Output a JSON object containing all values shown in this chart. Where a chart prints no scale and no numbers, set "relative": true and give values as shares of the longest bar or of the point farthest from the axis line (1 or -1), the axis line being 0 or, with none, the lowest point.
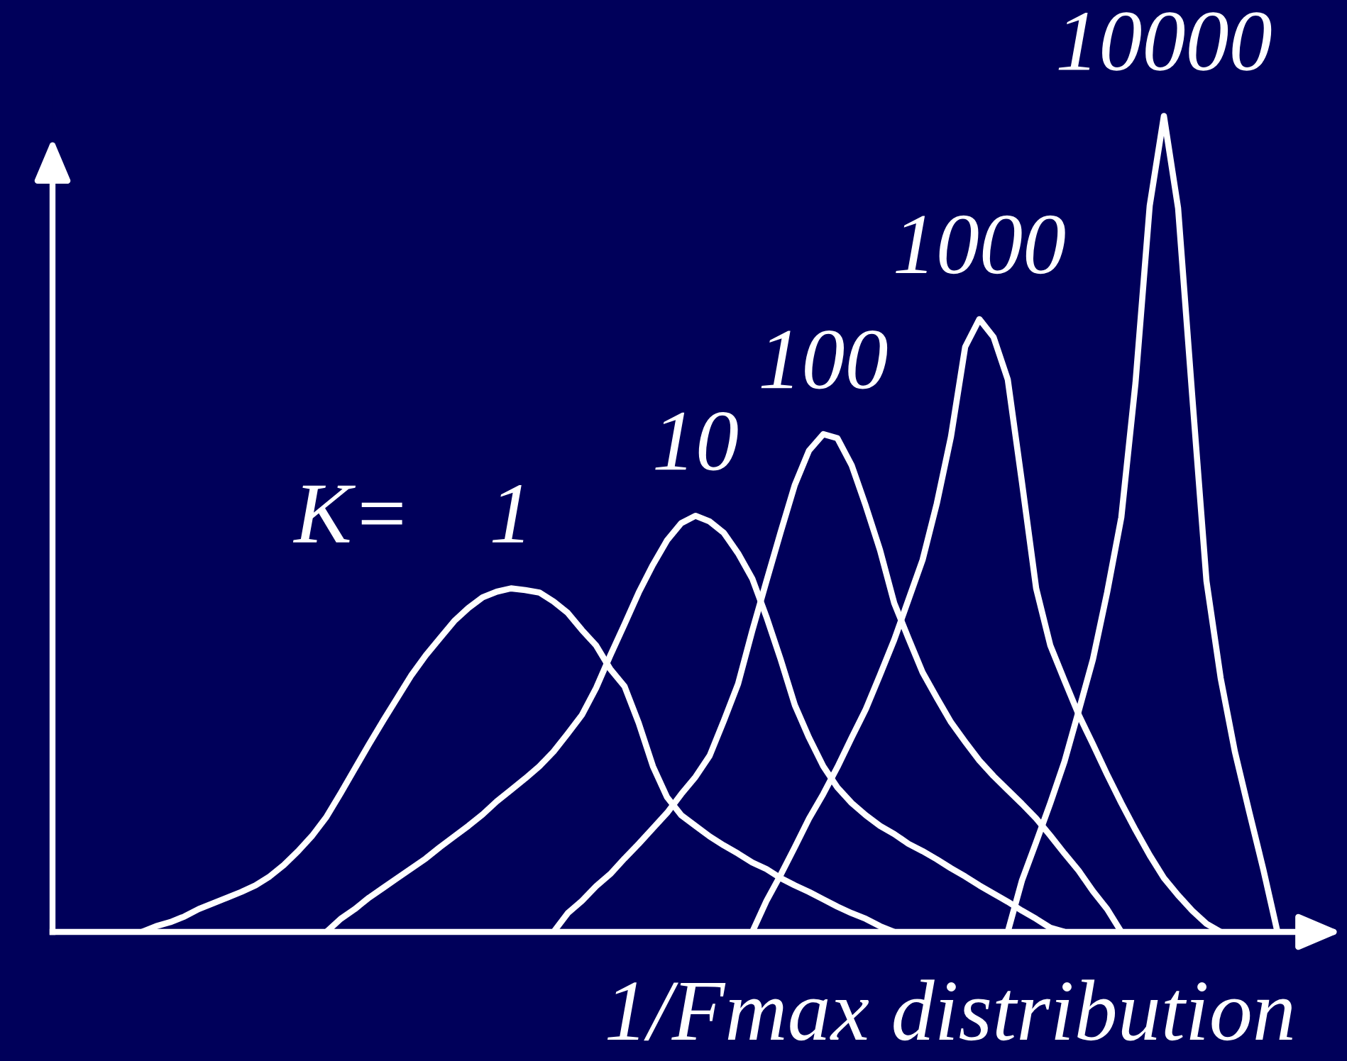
{
  "chart_data": {
    "type": "line",
    "relative": true,
    "xlabel": "1/Fmax distribution",
    "annotations": [
      "K="
    ],
    "categories": [
      null,
      null,
      null,
      null,
      null,
      null,
      null,
      null,
      null,
      null,
      null,
      null,
      null,
      null,
      null,
      null,
      null,
      null,
      null,
      null,
      null,
      null,
      null,
      null,
      null,
      null,
      null,
      null,
      null,
      null,
      null,
      null,
      null,
      null,
      null,
      null,
      null,
      null,
      null,
      null,
      null,
      null,
      null,
      null,
      null,
      null,
      null,
      null,
      null,
      null,
      null,
      null,
      null,
      null,
      null,
      null,
      null,
      null,
      null,
      null,
      null,
      null,
      null,
      null,
      null,
      null,
      null,
      null,
      null,
      null,
      null,
      null,
      null,
      null,
      null,
      null,
      null,
      null,
      null,
      null,
      null,
      null,
      null,
      null,
      null,
      null,
      null,
      null,
      null,
      null,
      null
    ],
    "series": [
      {
        "name": "1",
        "color": "#ffffff",
        "values": [
          null,
          null,
          null,
          null,
          null,
          null,
          0,
          0.007,
          0.012,
          0.019,
          0.028,
          0.035,
          0.042,
          0.049,
          0.057,
          0.068,
          0.082,
          0.099,
          0.118,
          0.141,
          0.17,
          0.2,
          0.23,
          0.259,
          0.287,
          0.315,
          0.339,
          0.36,
          0.381,
          0.397,
          0.41,
          0.417,
          0.421,
          0.419,
          0.416,
          0.405,
          0.391,
          0.37,
          0.351,
          0.322,
          0.301,
          0.256,
          0.203,
          0.165,
          0.143,
          0.13,
          0.117,
          0.106,
          0.096,
          0.085,
          0.077,
          0.066,
          0.057,
          0.049,
          0.04,
          0.031,
          0.023,
          0.016,
          0.007,
          0,
          null,
          null,
          null,
          null,
          null,
          null,
          null,
          null,
          null,
          null,
          null,
          null,
          null,
          null,
          null,
          null,
          null,
          null,
          null,
          null,
          null,
          null,
          null,
          null,
          null,
          null,
          null,
          null,
          null,
          null,
          null
        ]
      },
      {
        "name": "10",
        "color": "#ffffff",
        "values": [
          null,
          null,
          null,
          null,
          null,
          null,
          null,
          null,
          null,
          null,
          null,
          null,
          null,
          null,
          null,
          null,
          null,
          null,
          null,
          0,
          0.016,
          0.028,
          0.042,
          0.054,
          0.066,
          0.078,
          0.09,
          0.104,
          0.117,
          0.13,
          0.144,
          0.16,
          0.174,
          0.188,
          0.203,
          0.221,
          0.243,
          0.266,
          0.299,
          0.339,
          0.377,
          0.416,
          0.45,
          0.48,
          0.501,
          0.51,
          0.503,
          0.489,
          0.464,
          0.433,
          0.386,
          0.334,
          0.278,
          0.238,
          0.203,
          0.177,
          0.158,
          0.143,
          0.13,
          0.12,
          0.108,
          0.099,
          0.089,
          0.078,
          0.068,
          0.057,
          0.047,
          0.037,
          0.026,
          0.016,
          0.005,
          0,
          null,
          null,
          null,
          null,
          null,
          null,
          null,
          null,
          null,
          null,
          null,
          null,
          null,
          null,
          null,
          null,
          null,
          null,
          null
        ]
      },
      {
        "name": "100",
        "color": "#ffffff",
        "values": [
          null,
          null,
          null,
          null,
          null,
          null,
          null,
          null,
          null,
          null,
          null,
          null,
          null,
          null,
          null,
          null,
          null,
          null,
          null,
          null,
          null,
          null,
          null,
          null,
          null,
          null,
          null,
          null,
          null,
          null,
          null,
          null,
          null,
          null,
          null,
          0,
          0.023,
          0.038,
          0.056,
          0.071,
          0.09,
          0.108,
          0.127,
          0.146,
          0.169,
          0.19,
          0.216,
          0.259,
          0.304,
          0.369,
          0.43,
          0.49,
          0.548,
          0.59,
          0.61,
          0.605,
          0.572,
          0.522,
          0.468,
          0.403,
          0.36,
          0.318,
          0.287,
          0.257,
          0.233,
          0.21,
          0.191,
          0.174,
          0.157,
          0.139,
          0.118,
          0.096,
          0.075,
          0.05,
          0.028,
          0,
          null,
          null,
          null,
          null,
          null,
          null,
          null,
          null,
          null,
          null,
          null,
          null,
          null,
          null,
          null
        ]
      },
      {
        "name": "1000",
        "color": "#ffffff",
        "values": [
          null,
          null,
          null,
          null,
          null,
          null,
          null,
          null,
          null,
          null,
          null,
          null,
          null,
          null,
          null,
          null,
          null,
          null,
          null,
          null,
          null,
          null,
          null,
          null,
          null,
          null,
          null,
          null,
          null,
          null,
          null,
          null,
          null,
          null,
          null,
          null,
          null,
          null,
          null,
          null,
          null,
          null,
          null,
          null,
          null,
          null,
          null,
          null,
          null,
          0,
          0.038,
          0.07,
          0.104,
          0.139,
          0.169,
          0.202,
          0.238,
          0.273,
          0.315,
          0.358,
          0.407,
          0.456,
          0.525,
          0.607,
          0.717,
          0.751,
          0.729,
          0.677,
          0.551,
          0.421,
          0.351,
          0.308,
          0.266,
          0.23,
          0.193,
          0.158,
          0.125,
          0.094,
          0.066,
          0.045,
          0.026,
          0.01,
          0,
          null,
          null,
          null,
          null,
          null,
          null,
          null,
          null
        ]
      },
      {
        "name": "10000",
        "color": "#ffffff",
        "values": [
          null,
          null,
          null,
          null,
          null,
          null,
          null,
          null,
          null,
          null,
          null,
          null,
          null,
          null,
          null,
          null,
          null,
          null,
          null,
          null,
          null,
          null,
          null,
          null,
          null,
          null,
          null,
          null,
          null,
          null,
          null,
          null,
          null,
          null,
          null,
          null,
          null,
          null,
          null,
          null,
          null,
          null,
          null,
          null,
          null,
          null,
          null,
          null,
          null,
          null,
          null,
          null,
          null,
          null,
          null,
          null,
          null,
          null,
          null,
          null,
          null,
          null,
          null,
          null,
          null,
          null,
          null,
          0,
          0.063,
          0.11,
          0.158,
          0.209,
          0.271,
          0.334,
          0.416,
          0.508,
          0.673,
          0.89,
          1,
          0.887,
          0.656,
          0.43,
          0.311,
          0.221,
          0.148,
          0.077,
          0,
          null,
          null,
          null,
          null
        ]
      }
    ]
  }
}
